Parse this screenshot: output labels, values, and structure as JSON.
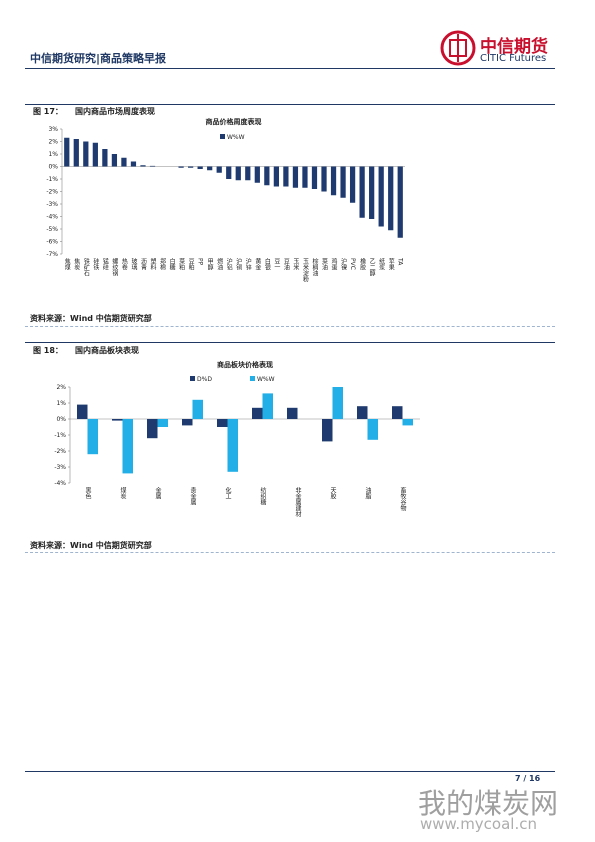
{
  "header": {
    "title": "中信期货研究|商品策略早报",
    "logo_cn": "中信期货",
    "logo_en": "CITIC Futures"
  },
  "figures": [
    {
      "label": "图 17：",
      "caption": "国内商品市场周度表现",
      "source": "资料来源：Wind  中信期货研究部",
      "chart_data": {
        "type": "bar",
        "title": "商品价格周度表现",
        "categories": [
          "焦煤",
          "焦炭",
          "铁矿石",
          "硅铁",
          "锰硅",
          "螺纹钢",
          "热卷",
          "玻璃",
          "沥青",
          "塑料",
          "郑棉",
          "白糖",
          "菜粕",
          "豆粕",
          "PP",
          "甲醇",
          "燃油",
          "沪铝",
          "沪铜",
          "沪锌",
          "黄金",
          "白银",
          "豆一",
          "豆油",
          "玉米",
          "玉米淀粉",
          "棕榈油",
          "菜油",
          "鸡蛋",
          "沪镍",
          "PVC",
          "橡胶",
          "乙二醇",
          "纸浆",
          "苹果",
          "TA"
        ],
        "series": [
          {
            "name": "W%W",
            "color": "#1f3a6e",
            "values": [
              2.3,
              2.2,
              2.0,
              1.9,
              1.4,
              1.0,
              0.7,
              0.4,
              0.1,
              0.05,
              0.0,
              0.0,
              -0.1,
              -0.1,
              -0.2,
              -0.3,
              -0.5,
              -1.0,
              -1.1,
              -1.1,
              -1.3,
              -1.5,
              -1.6,
              -1.6,
              -1.7,
              -1.7,
              -1.8,
              -2.0,
              -2.3,
              -2.5,
              -2.9,
              -4.1,
              -4.2,
              -4.8,
              -5.1,
              -5.7
            ]
          }
        ],
        "ylim": [
          -7,
          3
        ],
        "yticks": [
          {
            "value": -7,
            "label": "-7%"
          },
          {
            "value": -6,
            "label": "-6%"
          },
          {
            "value": -5,
            "label": "-5%"
          },
          {
            "value": -4,
            "label": "-4%"
          },
          {
            "value": -3,
            "label": "-3%"
          },
          {
            "value": -2,
            "label": "-2%"
          },
          {
            "value": -1,
            "label": "-1%"
          },
          {
            "value": 0,
            "label": "0%"
          },
          {
            "value": 1,
            "label": "1%"
          },
          {
            "value": 2,
            "label": "2%"
          },
          {
            "value": 3,
            "label": "3%"
          }
        ]
      }
    },
    {
      "label": "图 18：",
      "caption": "国内商品板块表现",
      "source": "资料来源：Wind  中信期货研究部",
      "chart_data": {
        "type": "bar",
        "title": "商品板块价格表现",
        "categories": [
          "黑色",
          "煤炭",
          "金属",
          "贵金属",
          "化工",
          "纺织糖",
          "非金属建材",
          "天胶",
          "油脂",
          "畜牧谷物"
        ],
        "series": [
          {
            "name": "D%D",
            "color": "#1f3a6e",
            "values": [
              0.9,
              -0.1,
              -1.2,
              -0.4,
              -0.5,
              0.7,
              0.7,
              -1.4,
              0.8,
              0.8
            ]
          },
          {
            "name": "W%W",
            "color": "#22aee6",
            "values": [
              -2.2,
              -3.4,
              -0.5,
              1.2,
              -3.3,
              1.6,
              0,
              2.0,
              -1.3,
              -0.4
            ]
          }
        ],
        "ylim": [
          -4,
          2
        ],
        "yticks": [
          {
            "value": -4,
            "label": "-4%"
          },
          {
            "value": -3,
            "label": "-3%"
          },
          {
            "value": -2,
            "label": "-2%"
          },
          {
            "value": -1,
            "label": "-1%"
          },
          {
            "value": 0,
            "label": "0%"
          },
          {
            "value": 1,
            "label": "1%"
          },
          {
            "value": 2,
            "label": "2%"
          }
        ]
      }
    }
  ],
  "footer": {
    "page": "7 / 16"
  },
  "watermark": {
    "cn": "我的煤炭网",
    "url": "www.mycoal.cn"
  }
}
